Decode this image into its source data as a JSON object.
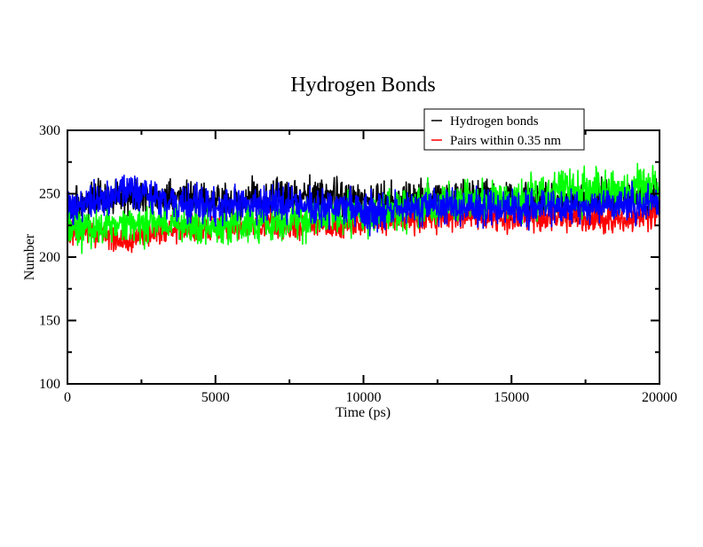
{
  "chart_data": {
    "type": "line",
    "title": "Hydrogen Bonds",
    "xlabel": "Time (ps)",
    "ylabel": "Number",
    "xlim": [
      0,
      20000
    ],
    "ylim": [
      100,
      300
    ],
    "x_ticks": [
      0,
      5000,
      10000,
      15000,
      20000
    ],
    "x_tick_labels": [
      "0",
      "5000",
      "10000",
      "15000",
      "20000"
    ],
    "y_ticks": [
      100,
      150,
      200,
      250,
      300
    ],
    "y_tick_labels": [
      "100",
      "150",
      "200",
      "250",
      "300"
    ],
    "grid": false,
    "legend": {
      "position": "top-right"
    },
    "x": [
      0,
      1000,
      2000,
      3000,
      4000,
      5000,
      6000,
      7000,
      8000,
      9000,
      10000,
      11000,
      12000,
      13000,
      14000,
      15000,
      16000,
      17000,
      18000,
      19000,
      20000
    ],
    "series": [
      {
        "name": "Hydrogen bonds",
        "color": "#000000",
        "values": [
          240,
          245,
          250,
          248,
          246,
          244,
          246,
          248,
          247,
          248,
          244,
          245,
          246,
          247,
          246,
          244,
          245,
          246,
          245,
          246,
          248
        ],
        "spread": 12
      },
      {
        "name": "Pairs within 0.35 nm",
        "color": "#ff0000",
        "values": [
          218,
          220,
          212,
          222,
          222,
          224,
          224,
          226,
          224,
          225,
          228,
          230,
          230,
          232,
          232,
          230,
          232,
          232,
          230,
          230,
          236
        ],
        "spread": 9
      },
      {
        "color": "#00ff00",
        "values": [
          222,
          222,
          225,
          228,
          226,
          225,
          228,
          228,
          230,
          232,
          234,
          236,
          240,
          244,
          244,
          246,
          250,
          252,
          252,
          254,
          256
        ],
        "spread": 14
      },
      {
        "color": "#0000ff",
        "values": [
          238,
          246,
          252,
          246,
          242,
          240,
          240,
          242,
          240,
          240,
          236,
          238,
          240,
          240,
          240,
          238,
          238,
          240,
          240,
          242,
          244
        ],
        "spread": 12
      }
    ]
  }
}
